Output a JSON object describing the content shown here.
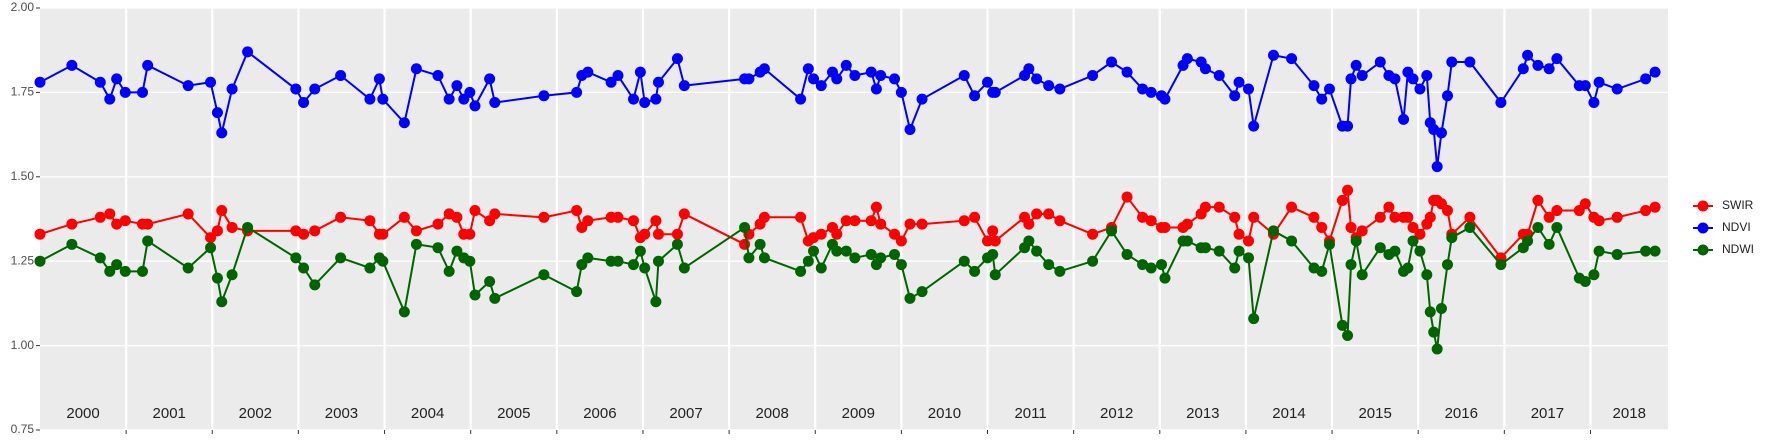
{
  "chart_data": {
    "type": "line",
    "x": [
      2000.0,
      2000.37,
      2000.7,
      2000.81,
      2000.89,
      2000.99,
      2001.19,
      2001.25,
      2001.72,
      2001.98,
      2002.06,
      2002.11,
      2002.23,
      2002.41,
      2002.97,
      2003.06,
      2003.19,
      2003.49,
      2003.83,
      2003.94,
      2003.98,
      2004.23,
      2004.37,
      2004.62,
      2004.75,
      2004.84,
      2004.92,
      2004.99,
      2005.05,
      2005.22,
      2005.28,
      2005.85,
      2006.23,
      2006.29,
      2006.36,
      2006.63,
      2006.71,
      2006.89,
      2006.97,
      2007.02,
      2007.15,
      2007.18,
      2007.4,
      2007.48,
      2008.18,
      2008.23,
      2008.36,
      2008.41,
      2008.83,
      2008.92,
      2008.98,
      2009.07,
      2009.2,
      2009.25,
      2009.36,
      2009.46,
      2009.65,
      2009.71,
      2009.76,
      2009.92,
      2010.0,
      2010.1,
      2010.24,
      2010.73,
      2010.85,
      2011.0,
      2011.06,
      2011.09,
      2011.43,
      2011.48,
      2011.57,
      2011.71,
      2011.84,
      2012.22,
      2012.44,
      2012.62,
      2012.8,
      2012.9,
      2013.02,
      2013.06,
      2013.27,
      2013.32,
      2013.48,
      2013.53,
      2013.69,
      2013.87,
      2013.92,
      2014.03,
      2014.09,
      2014.32,
      2014.53,
      2014.79,
      2014.88,
      2014.97,
      2015.12,
      2015.18,
      2015.22,
      2015.28,
      2015.35,
      2015.56,
      2015.66,
      2015.73,
      2015.83,
      2015.88,
      2015.94,
      2016.02,
      2016.1,
      2016.14,
      2016.18,
      2016.22,
      2016.27,
      2016.34,
      2016.39,
      2016.6,
      2016.96,
      2017.22,
      2017.27,
      2017.39,
      2017.52,
      2017.61,
      2017.87,
      2017.94,
      2018.04,
      2018.1,
      2018.31,
      2018.64,
      2018.75
    ],
    "series": [
      {
        "name": "SWIR",
        "color": "#ff0000",
        "values": [
          1.33,
          1.36,
          1.38,
          1.39,
          1.36,
          1.37,
          1.36,
          1.36,
          1.39,
          1.32,
          1.34,
          1.4,
          1.35,
          1.34,
          1.34,
          1.33,
          1.34,
          1.38,
          1.37,
          1.33,
          1.33,
          1.38,
          1.34,
          1.36,
          1.39,
          1.38,
          1.33,
          1.33,
          1.4,
          1.37,
          1.39,
          1.38,
          1.4,
          1.35,
          1.37,
          1.38,
          1.38,
          1.37,
          1.32,
          1.33,
          1.37,
          1.33,
          1.33,
          1.39,
          1.3,
          1.33,
          1.36,
          1.38,
          1.38,
          1.31,
          1.32,
          1.33,
          1.35,
          1.33,
          1.37,
          1.37,
          1.37,
          1.41,
          1.36,
          1.33,
          1.31,
          1.36,
          1.36,
          1.37,
          1.38,
          1.31,
          1.34,
          1.31,
          1.38,
          1.36,
          1.39,
          1.39,
          1.37,
          1.33,
          1.35,
          1.44,
          1.38,
          1.37,
          1.35,
          1.35,
          1.35,
          1.36,
          1.39,
          1.41,
          1.41,
          1.38,
          1.33,
          1.31,
          1.38,
          1.33,
          1.41,
          1.38,
          1.35,
          1.31,
          1.43,
          1.46,
          1.35,
          1.32,
          1.34,
          1.38,
          1.41,
          1.38,
          1.38,
          1.38,
          1.35,
          1.33,
          1.36,
          1.38,
          1.43,
          1.43,
          1.42,
          1.4,
          1.33,
          1.38,
          1.26,
          1.33,
          1.33,
          1.43,
          1.38,
          1.4,
          1.4,
          1.42,
          1.38,
          1.37,
          1.38,
          1.4,
          1.41
        ]
      },
      {
        "name": "NDVI",
        "color": "#0000ff",
        "values": [
          1.78,
          1.83,
          1.78,
          1.73,
          1.79,
          1.75,
          1.75,
          1.83,
          1.77,
          1.78,
          1.69,
          1.63,
          1.76,
          1.87,
          1.76,
          1.72,
          1.76,
          1.8,
          1.73,
          1.79,
          1.73,
          1.66,
          1.82,
          1.8,
          1.73,
          1.77,
          1.73,
          1.75,
          1.71,
          1.79,
          1.72,
          1.74,
          1.75,
          1.8,
          1.81,
          1.78,
          1.8,
          1.73,
          1.81,
          1.72,
          1.73,
          1.78,
          1.85,
          1.77,
          1.79,
          1.79,
          1.81,
          1.82,
          1.73,
          1.82,
          1.79,
          1.77,
          1.81,
          1.79,
          1.83,
          1.8,
          1.81,
          1.76,
          1.8,
          1.79,
          1.75,
          1.64,
          1.73,
          1.8,
          1.74,
          1.78,
          1.75,
          1.75,
          1.8,
          1.82,
          1.79,
          1.77,
          1.76,
          1.8,
          1.84,
          1.81,
          1.76,
          1.75,
          1.74,
          1.73,
          1.83,
          1.85,
          1.84,
          1.82,
          1.8,
          1.74,
          1.78,
          1.76,
          1.65,
          1.86,
          1.85,
          1.77,
          1.73,
          1.76,
          1.65,
          1.65,
          1.79,
          1.83,
          1.8,
          1.84,
          1.8,
          1.79,
          1.67,
          1.81,
          1.79,
          1.76,
          1.8,
          1.66,
          1.64,
          1.53,
          1.63,
          1.74,
          1.84,
          1.84,
          1.72,
          1.82,
          1.86,
          1.83,
          1.82,
          1.85,
          1.77,
          1.77,
          1.72,
          1.78,
          1.76,
          1.79,
          1.81
        ]
      },
      {
        "name": "NDWI",
        "color": "#006400",
        "values": [
          1.25,
          1.3,
          1.26,
          1.22,
          1.24,
          1.22,
          1.22,
          1.31,
          1.23,
          1.29,
          1.2,
          1.13,
          1.21,
          1.35,
          1.26,
          1.23,
          1.18,
          1.26,
          1.23,
          1.26,
          1.25,
          1.1,
          1.3,
          1.29,
          1.22,
          1.28,
          1.26,
          1.25,
          1.15,
          1.19,
          1.14,
          1.21,
          1.16,
          1.24,
          1.26,
          1.25,
          1.25,
          1.24,
          1.28,
          1.23,
          1.13,
          1.25,
          1.3,
          1.23,
          1.35,
          1.26,
          1.3,
          1.26,
          1.22,
          1.25,
          1.28,
          1.23,
          1.3,
          1.28,
          1.28,
          1.26,
          1.27,
          1.24,
          1.26,
          1.27,
          1.24,
          1.14,
          1.16,
          1.25,
          1.22,
          1.26,
          1.27,
          1.21,
          1.29,
          1.31,
          1.28,
          1.24,
          1.22,
          1.25,
          1.34,
          1.27,
          1.24,
          1.23,
          1.24,
          1.2,
          1.31,
          1.31,
          1.29,
          1.29,
          1.28,
          1.23,
          1.28,
          1.26,
          1.08,
          1.34,
          1.31,
          1.23,
          1.22,
          1.3,
          1.06,
          1.03,
          1.24,
          1.31,
          1.21,
          1.29,
          1.27,
          1.28,
          1.22,
          1.23,
          1.31,
          1.28,
          1.21,
          1.1,
          1.04,
          0.99,
          1.11,
          1.24,
          1.32,
          1.35,
          1.24,
          1.29,
          1.31,
          1.35,
          1.3,
          1.35,
          1.2,
          1.19,
          1.21,
          1.28,
          1.27,
          1.28,
          1.28
        ]
      }
    ],
    "xlim": [
      2000,
      2018.9
    ],
    "xgrid": [
      2001,
      2002,
      2003,
      2004,
      2005,
      2006,
      2007,
      2008,
      2009,
      2010,
      2011,
      2012,
      2013,
      2014,
      2015,
      2016,
      2017,
      2018
    ],
    "xticks": [
      {
        "value": 2000.5,
        "label": "2000"
      },
      {
        "value": 2001.5,
        "label": "2001"
      },
      {
        "value": 2002.5,
        "label": "2002"
      },
      {
        "value": 2003.5,
        "label": "2003"
      },
      {
        "value": 2004.5,
        "label": "2004"
      },
      {
        "value": 2005.5,
        "label": "2005"
      },
      {
        "value": 2006.5,
        "label": "2006"
      },
      {
        "value": 2007.5,
        "label": "2007"
      },
      {
        "value": 2008.5,
        "label": "2008"
      },
      {
        "value": 2009.5,
        "label": "2009"
      },
      {
        "value": 2010.5,
        "label": "2010"
      },
      {
        "value": 2011.5,
        "label": "2011"
      },
      {
        "value": 2012.5,
        "label": "2012"
      },
      {
        "value": 2013.5,
        "label": "2013"
      },
      {
        "value": 2014.5,
        "label": "2014"
      },
      {
        "value": 2015.5,
        "label": "2015"
      },
      {
        "value": 2016.5,
        "label": "2016"
      },
      {
        "value": 2017.5,
        "label": "2017"
      },
      {
        "value": 2018.45,
        "label": "2018"
      }
    ],
    "ylim": [
      0.75,
      2.0
    ],
    "yticks": [
      {
        "value": 0.75,
        "label": "0.75"
      },
      {
        "value": 1.0,
        "label": "1.00"
      },
      {
        "value": 1.25,
        "label": "1.25"
      },
      {
        "value": 1.5,
        "label": "1.50"
      },
      {
        "value": 1.75,
        "label": "1.75"
      },
      {
        "value": 2.0,
        "label": "2.00"
      }
    ],
    "grid": true,
    "legend": "right"
  }
}
